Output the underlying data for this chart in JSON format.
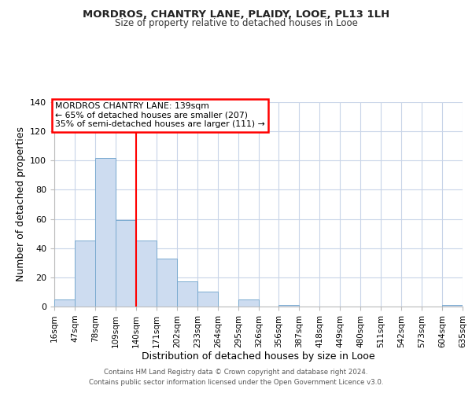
{
  "title": "MORDROS, CHANTRY LANE, PLAIDY, LOOE, PL13 1LH",
  "subtitle": "Size of property relative to detached houses in Looe",
  "xlabel": "Distribution of detached houses by size in Looe",
  "ylabel": "Number of detached properties",
  "bar_color": "#cddcf0",
  "bar_edge_color": "#7aaad0",
  "bins": [
    16,
    47,
    78,
    109,
    140,
    171,
    202,
    233,
    264,
    295,
    326,
    356,
    387,
    418,
    449,
    480,
    511,
    542,
    573,
    604,
    635
  ],
  "counts": [
    5,
    45,
    102,
    59,
    45,
    33,
    17,
    10,
    0,
    5,
    0,
    1,
    0,
    0,
    0,
    0,
    0,
    0,
    0,
    1
  ],
  "tick_labels": [
    "16sqm",
    "47sqm",
    "78sqm",
    "109sqm",
    "140sqm",
    "171sqm",
    "202sqm",
    "233sqm",
    "264sqm",
    "295sqm",
    "326sqm",
    "356sqm",
    "387sqm",
    "418sqm",
    "449sqm",
    "480sqm",
    "511sqm",
    "542sqm",
    "573sqm",
    "604sqm",
    "635sqm"
  ],
  "vline_x": 140,
  "ylim": [
    0,
    140
  ],
  "yticks": [
    0,
    20,
    40,
    60,
    80,
    100,
    120,
    140
  ],
  "annotation_line1": "MORDROS CHANTRY LANE: 139sqm",
  "annotation_line2": "← 65% of detached houses are smaller (207)",
  "annotation_line3": "35% of semi-detached houses are larger (111) →",
  "footer1": "Contains HM Land Registry data © Crown copyright and database right 2024.",
  "footer2": "Contains public sector information licensed under the Open Government Licence v3.0.",
  "background_color": "#ffffff",
  "grid_color": "#c8d4e8"
}
